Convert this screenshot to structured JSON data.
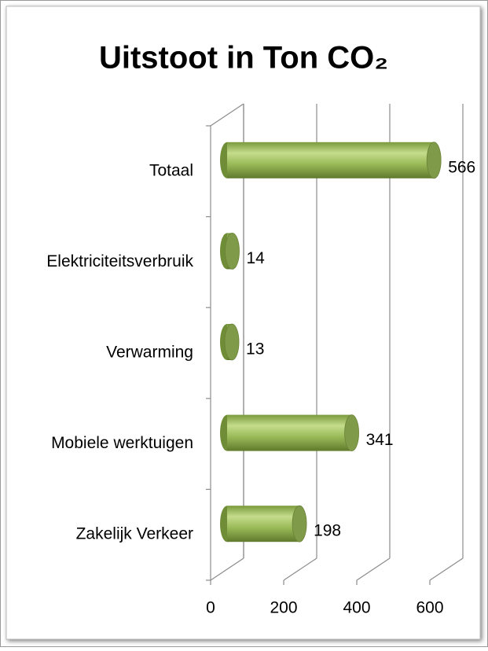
{
  "chart_data": {
    "type": "bar3d_horizontal",
    "title": "Uitstoot in Ton CO₂",
    "categories": [
      "Zakelijk Verkeer",
      "Mobiele werktuigen",
      "Verwarming",
      "Elektriciteitsverbruik",
      "Totaal"
    ],
    "values": [
      198,
      341,
      13,
      14,
      566
    ],
    "color": "#9bbb59",
    "xlim": [
      0,
      600
    ],
    "xticks": [
      0,
      200,
      400,
      600
    ],
    "grid": true
  }
}
